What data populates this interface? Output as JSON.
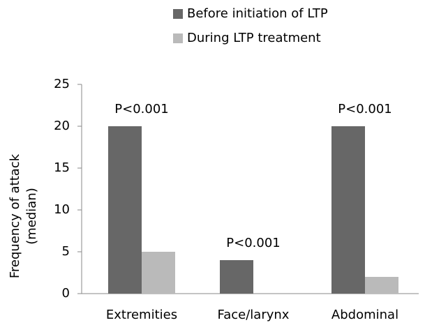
{
  "chart_data": {
    "type": "bar",
    "categories": [
      "Extremities",
      "Face/larynx",
      "Abdominal"
    ],
    "series": [
      {
        "name": "Before initiation of LTP",
        "color": "#676767",
        "values": [
          20,
          4,
          20
        ]
      },
      {
        "name": "During LTP treatment",
        "color": "#bababa",
        "values": [
          5,
          0,
          2
        ]
      }
    ],
    "annotations": [
      "P<0.001",
      "P<0.001",
      "P<0.001"
    ],
    "ylabel": [
      "Frequency of attack",
      "(median)"
    ],
    "ylim": [
      0,
      25
    ],
    "yticks": [
      0,
      5,
      10,
      15,
      20,
      25
    ],
    "grid": false,
    "legend": "top"
  }
}
